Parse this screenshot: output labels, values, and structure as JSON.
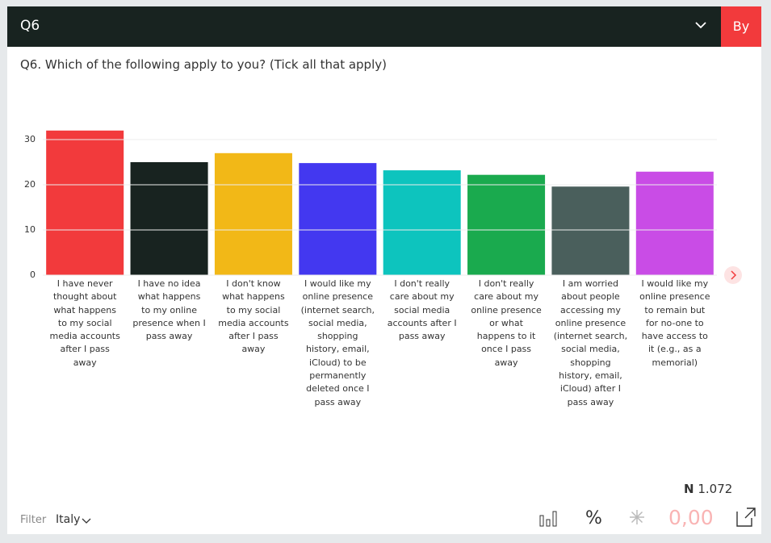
{
  "header": {
    "title": "Q6",
    "by_button": "By"
  },
  "chart_data": {
    "type": "bar",
    "title": "Q6. Which of the following apply to you? (Tick all that apply)",
    "categories": [
      "I have never thought about what happens to my social media accounts after I pass away",
      "I have no idea what happens to my online presence when I pass away",
      "I don't know what happens to my social media accounts after I pass away",
      "I would like my online presence (internet search, social media, shopping history, email, iCloud) to be permanently deleted once I pass away",
      "I don't really care about my social media accounts after I pass away",
      "I don't really care about my online presence or what happens to it once I pass away",
      "I am worried about people accessing my online presence (internet search, social media, shopping history, email, iCloud) after I pass away",
      "I would like my online presence to remain but for no-one to have access to it (e.g., as a memorial)"
    ],
    "values": [
      32,
      25,
      27,
      24.8,
      23.2,
      22.2,
      19.6,
      22.9
    ],
    "colors": [
      "#f23a3c",
      "#182320",
      "#f2b817",
      "#4338f0",
      "#0dc4be",
      "#1aaa4e",
      "#4a5f5c",
      "#c94ce6"
    ],
    "ylim": [
      0,
      35
    ],
    "yticks": [
      0,
      10,
      20,
      30
    ],
    "grid": true
  },
  "footer": {
    "n_label": "N",
    "n_value": "1.072",
    "filter_label": "Filter",
    "filter_value": "Italy",
    "percent": "%",
    "decimal_value": "0,00"
  }
}
